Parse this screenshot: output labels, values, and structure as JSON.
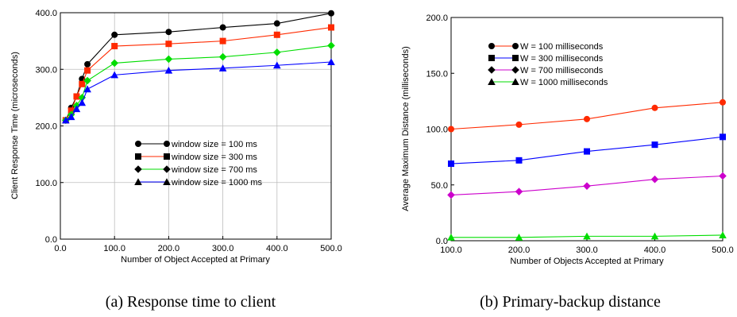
{
  "chart_data": [
    {
      "type": "line",
      "xlabel": "Number of Object Accepted at Primary",
      "ylabel": "Client Response Time (microseconds)",
      "xlim": [
        0,
        500
      ],
      "ylim": [
        0,
        400
      ],
      "xticks": [
        0,
        100,
        200,
        300,
        400,
        500
      ],
      "xtick_labels": [
        "0.0",
        "100.0",
        "200.0",
        "300.0",
        "400.0",
        "500.0"
      ],
      "yticks": [
        0,
        100,
        200,
        300,
        400
      ],
      "ytick_labels": [
        "0.0",
        "100.0",
        "200.0",
        "300.0",
        "400.0"
      ],
      "grid": true,
      "legend_position": "center-right",
      "caption": "(a) Response time to client",
      "x": [
        10,
        20,
        30,
        40,
        50,
        100,
        200,
        300,
        400,
        500
      ],
      "series": [
        {
          "name": "window size = 100 ms",
          "color": "#000000",
          "marker": "circle",
          "values": [
            210,
            232,
            252,
            283,
            309,
            361,
            366,
            374,
            381,
            399
          ]
        },
        {
          "name": "window size = 300 ms",
          "color": "#ff2a00",
          "marker": "square",
          "values": [
            210,
            227,
            252,
            274,
            298,
            341,
            345,
            350,
            361,
            374
          ]
        },
        {
          "name": "window size = 700 ms",
          "color": "#00dd00",
          "marker": "diamond",
          "values": [
            210,
            220,
            236,
            250,
            280,
            311,
            318,
            322,
            330,
            342
          ]
        },
        {
          "name": "window size = 1000 ms",
          "color": "#0000ff",
          "marker": "triangle",
          "values": [
            210,
            216,
            230,
            241,
            265,
            290,
            298,
            302,
            307,
            313
          ]
        }
      ]
    },
    {
      "type": "line",
      "xlabel": "Number of Objects Accepted at Primary",
      "ylabel": "Average Maximum Distance (milliseconds)",
      "xlim": [
        100,
        500
      ],
      "ylim": [
        0,
        200
      ],
      "xticks": [
        100,
        200,
        300,
        400,
        500
      ],
      "xtick_labels": [
        "100.0",
        "200.0",
        "300.0",
        "400.0",
        "500.0"
      ],
      "yticks": [
        0,
        50,
        100,
        150,
        200
      ],
      "ytick_labels": [
        "0.0",
        "50.0",
        "100.0",
        "150.0",
        "200.0"
      ],
      "grid": false,
      "legend_position": "top-left",
      "caption": "(b) Primary-backup distance",
      "x": [
        100,
        200,
        300,
        400,
        500
      ],
      "series": [
        {
          "name": "W = 100 milliseconds",
          "color": "#ff2a00",
          "marker": "circle",
          "values": [
            100,
            104,
            109,
            119,
            124
          ]
        },
        {
          "name": "W = 300 milliseconds",
          "color": "#0000ff",
          "marker": "square",
          "values": [
            69,
            72,
            80,
            86,
            93
          ]
        },
        {
          "name": "W = 700 milliseconds",
          "color": "#cc00cc",
          "marker": "diamond",
          "values": [
            41,
            44,
            49,
            55,
            58
          ]
        },
        {
          "name": "W = 1000 milliseconds",
          "color": "#00dd00",
          "marker": "triangle",
          "values": [
            3,
            3,
            4,
            4,
            5
          ]
        }
      ]
    }
  ]
}
